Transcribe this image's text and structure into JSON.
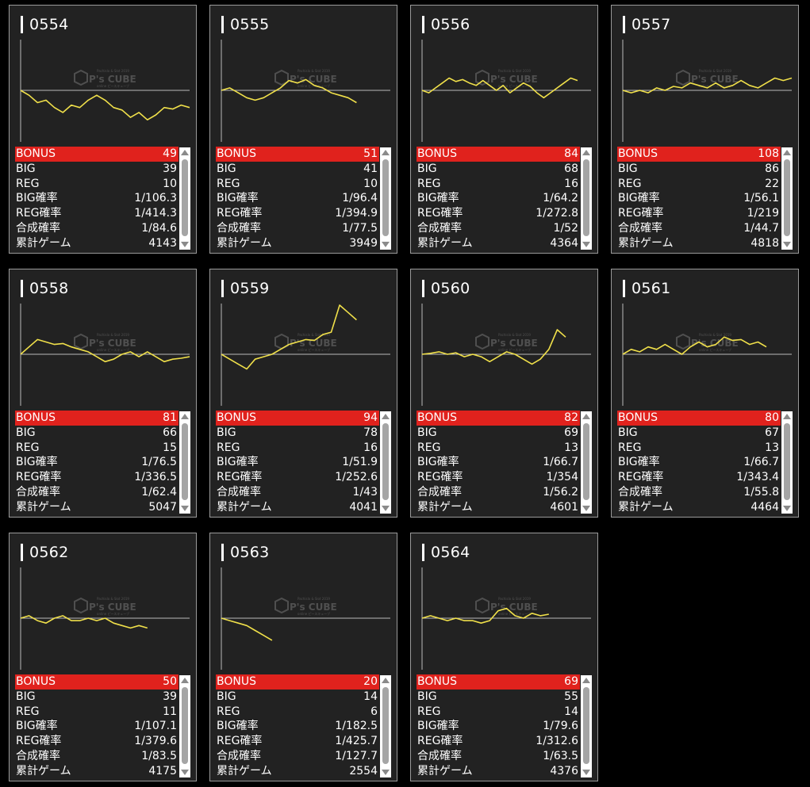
{
  "labels": {
    "bonus": "BONUS",
    "big": "BIG",
    "reg": "REG",
    "big_rate": "BIG確率",
    "reg_rate": "REG確率",
    "total_rate": "合成確率",
    "games": "累計ゲーム"
  },
  "watermark": {
    "brand": "P's CUBE",
    "small_top": "Pachislo & Slot 2019",
    "small_bottom": "online ピースキューブ"
  },
  "colors": {
    "bonus_bg": "#e0221d",
    "graph_line": "#f0e04a",
    "card_bg": "#222222"
  },
  "machines": [
    {
      "num": "0554",
      "bonus": "49",
      "big": "39",
      "reg": "10",
      "big_rate": "1/106.3",
      "reg_rate": "1/414.3",
      "total_rate": "1/84.6",
      "games": "4143",
      "graph": [
        [
          0,
          0
        ],
        [
          0.05,
          -0.1
        ],
        [
          0.1,
          -0.25
        ],
        [
          0.15,
          -0.2
        ],
        [
          0.2,
          -0.35
        ],
        [
          0.25,
          -0.45
        ],
        [
          0.3,
          -0.3
        ],
        [
          0.35,
          -0.35
        ],
        [
          0.4,
          -0.2
        ],
        [
          0.45,
          -0.1
        ],
        [
          0.5,
          -0.2
        ],
        [
          0.55,
          -0.35
        ],
        [
          0.6,
          -0.4
        ],
        [
          0.65,
          -0.55
        ],
        [
          0.7,
          -0.45
        ],
        [
          0.75,
          -0.6
        ],
        [
          0.8,
          -0.5
        ],
        [
          0.85,
          -0.35
        ],
        [
          0.9,
          -0.38
        ],
        [
          0.95,
          -0.3
        ],
        [
          1.0,
          -0.35
        ]
      ]
    },
    {
      "num": "0555",
      "bonus": "51",
      "big": "41",
      "reg": "10",
      "big_rate": "1/96.4",
      "reg_rate": "1/394.9",
      "total_rate": "1/77.5",
      "games": "3949",
      "graph": [
        [
          0,
          0
        ],
        [
          0.05,
          0.05
        ],
        [
          0.1,
          -0.05
        ],
        [
          0.15,
          -0.15
        ],
        [
          0.2,
          -0.2
        ],
        [
          0.25,
          -0.15
        ],
        [
          0.3,
          -0.05
        ],
        [
          0.35,
          0.05
        ],
        [
          0.4,
          0.2
        ],
        [
          0.45,
          0.15
        ],
        [
          0.5,
          0.22
        ],
        [
          0.55,
          0.1
        ],
        [
          0.6,
          0.05
        ],
        [
          0.65,
          -0.05
        ],
        [
          0.7,
          -0.1
        ],
        [
          0.75,
          -0.15
        ],
        [
          0.8,
          -0.25
        ]
      ]
    },
    {
      "num": "0556",
      "bonus": "84",
      "big": "68",
      "reg": "16",
      "big_rate": "1/64.2",
      "reg_rate": "1/272.8",
      "total_rate": "1/52",
      "games": "4364",
      "graph": [
        [
          0,
          0
        ],
        [
          0.04,
          -0.05
        ],
        [
          0.08,
          0.05
        ],
        [
          0.12,
          0.15
        ],
        [
          0.16,
          0.25
        ],
        [
          0.2,
          0.18
        ],
        [
          0.24,
          0.22
        ],
        [
          0.28,
          0.15
        ],
        [
          0.32,
          0.1
        ],
        [
          0.36,
          0.2
        ],
        [
          0.4,
          0.1
        ],
        [
          0.44,
          0.0
        ],
        [
          0.48,
          0.1
        ],
        [
          0.52,
          -0.05
        ],
        [
          0.56,
          0.05
        ],
        [
          0.6,
          0.15
        ],
        [
          0.64,
          0.08
        ],
        [
          0.68,
          -0.05
        ],
        [
          0.72,
          -0.15
        ],
        [
          0.76,
          -0.05
        ],
        [
          0.8,
          0.05
        ],
        [
          0.84,
          0.15
        ],
        [
          0.88,
          0.25
        ],
        [
          0.92,
          0.2
        ]
      ]
    },
    {
      "num": "0557",
      "bonus": "108",
      "big": "86",
      "reg": "22",
      "big_rate": "1/56.1",
      "reg_rate": "1/219",
      "total_rate": "1/44.7",
      "games": "4818",
      "graph": [
        [
          0,
          0
        ],
        [
          0.05,
          -0.05
        ],
        [
          0.1,
          0.0
        ],
        [
          0.15,
          -0.05
        ],
        [
          0.2,
          0.05
        ],
        [
          0.25,
          0.0
        ],
        [
          0.3,
          0.08
        ],
        [
          0.35,
          0.05
        ],
        [
          0.4,
          0.15
        ],
        [
          0.45,
          0.1
        ],
        [
          0.5,
          0.05
        ],
        [
          0.55,
          0.15
        ],
        [
          0.6,
          0.05
        ],
        [
          0.65,
          0.1
        ],
        [
          0.7,
          0.2
        ],
        [
          0.75,
          0.1
        ],
        [
          0.8,
          0.05
        ],
        [
          0.85,
          0.15
        ],
        [
          0.9,
          0.25
        ],
        [
          0.95,
          0.2
        ],
        [
          1.0,
          0.25
        ]
      ]
    },
    {
      "num": "0558",
      "bonus": "81",
      "big": "66",
      "reg": "15",
      "big_rate": "1/76.5",
      "reg_rate": "1/336.5",
      "total_rate": "1/62.4",
      "games": "5047",
      "graph": [
        [
          0,
          0
        ],
        [
          0.05,
          0.15
        ],
        [
          0.1,
          0.3
        ],
        [
          0.15,
          0.25
        ],
        [
          0.2,
          0.2
        ],
        [
          0.25,
          0.22
        ],
        [
          0.3,
          0.15
        ],
        [
          0.35,
          0.1
        ],
        [
          0.4,
          0.05
        ],
        [
          0.45,
          -0.05
        ],
        [
          0.5,
          -0.15
        ],
        [
          0.55,
          -0.1
        ],
        [
          0.6,
          0.0
        ],
        [
          0.65,
          0.05
        ],
        [
          0.7,
          -0.05
        ],
        [
          0.75,
          0.05
        ],
        [
          0.8,
          -0.05
        ],
        [
          0.85,
          -0.15
        ],
        [
          0.9,
          -0.1
        ],
        [
          0.95,
          -0.08
        ],
        [
          1.0,
          -0.05
        ]
      ]
    },
    {
      "num": "0559",
      "bonus": "94",
      "big": "78",
      "reg": "16",
      "big_rate": "1/51.9",
      "reg_rate": "1/252.6",
      "total_rate": "1/43",
      "games": "4041",
      "graph": [
        [
          0,
          0
        ],
        [
          0.05,
          -0.1
        ],
        [
          0.1,
          -0.2
        ],
        [
          0.15,
          -0.3
        ],
        [
          0.2,
          -0.1
        ],
        [
          0.25,
          -0.05
        ],
        [
          0.3,
          0.0
        ],
        [
          0.35,
          0.1
        ],
        [
          0.4,
          0.2
        ],
        [
          0.45,
          0.25
        ],
        [
          0.5,
          0.3
        ],
        [
          0.55,
          0.28
        ],
        [
          0.6,
          0.4
        ],
        [
          0.65,
          0.45
        ],
        [
          0.7,
          1.0
        ],
        [
          0.75,
          0.85
        ],
        [
          0.8,
          0.7
        ]
      ]
    },
    {
      "num": "0560",
      "bonus": "82",
      "big": "69",
      "reg": "13",
      "big_rate": "1/66.7",
      "reg_rate": "1/354",
      "total_rate": "1/56.2",
      "games": "4601",
      "graph": [
        [
          0,
          0
        ],
        [
          0.05,
          0.02
        ],
        [
          0.1,
          0.05
        ],
        [
          0.15,
          0.0
        ],
        [
          0.2,
          0.03
        ],
        [
          0.25,
          -0.05
        ],
        [
          0.3,
          0.0
        ],
        [
          0.35,
          -0.05
        ],
        [
          0.4,
          -0.15
        ],
        [
          0.45,
          -0.05
        ],
        [
          0.5,
          0.05
        ],
        [
          0.55,
          0.0
        ],
        [
          0.6,
          -0.1
        ],
        [
          0.65,
          -0.2
        ],
        [
          0.7,
          -0.1
        ],
        [
          0.75,
          0.1
        ],
        [
          0.8,
          0.5
        ],
        [
          0.85,
          0.35
        ]
      ]
    },
    {
      "num": "0561",
      "bonus": "80",
      "big": "67",
      "reg": "13",
      "big_rate": "1/66.7",
      "reg_rate": "1/343.4",
      "total_rate": "1/55.8",
      "games": "4464",
      "graph": [
        [
          0,
          0
        ],
        [
          0.05,
          0.1
        ],
        [
          0.1,
          0.05
        ],
        [
          0.15,
          0.15
        ],
        [
          0.2,
          0.1
        ],
        [
          0.25,
          0.2
        ],
        [
          0.3,
          0.1
        ],
        [
          0.35,
          0.0
        ],
        [
          0.4,
          0.15
        ],
        [
          0.45,
          0.25
        ],
        [
          0.5,
          0.15
        ],
        [
          0.55,
          0.2
        ],
        [
          0.6,
          0.35
        ],
        [
          0.65,
          0.28
        ],
        [
          0.7,
          0.3
        ],
        [
          0.75,
          0.2
        ],
        [
          0.8,
          0.25
        ],
        [
          0.85,
          0.15
        ]
      ]
    },
    {
      "num": "0562",
      "bonus": "50",
      "big": "39",
      "reg": "11",
      "big_rate": "1/107.1",
      "reg_rate": "1/379.6",
      "total_rate": "1/83.5",
      "games": "4175",
      "graph": [
        [
          0,
          0
        ],
        [
          0.05,
          0.05
        ],
        [
          0.1,
          -0.05
        ],
        [
          0.15,
          -0.1
        ],
        [
          0.2,
          0.0
        ],
        [
          0.25,
          0.05
        ],
        [
          0.3,
          -0.05
        ],
        [
          0.35,
          -0.05
        ],
        [
          0.4,
          0.0
        ],
        [
          0.45,
          -0.05
        ],
        [
          0.5,
          0.0
        ],
        [
          0.55,
          -0.1
        ],
        [
          0.6,
          -0.15
        ],
        [
          0.65,
          -0.2
        ],
        [
          0.7,
          -0.15
        ],
        [
          0.75,
          -0.2
        ]
      ]
    },
    {
      "num": "0563",
      "bonus": "20",
      "big": "14",
      "reg": "6",
      "big_rate": "1/182.5",
      "reg_rate": "1/425.7",
      "total_rate": "1/127.7",
      "games": "2554",
      "graph": [
        [
          0,
          0
        ],
        [
          0.05,
          -0.05
        ],
        [
          0.1,
          -0.1
        ],
        [
          0.15,
          -0.15
        ],
        [
          0.2,
          -0.25
        ],
        [
          0.25,
          -0.35
        ],
        [
          0.3,
          -0.45
        ]
      ]
    },
    {
      "num": "0564",
      "bonus": "69",
      "big": "55",
      "reg": "14",
      "big_rate": "1/79.6",
      "reg_rate": "1/312.6",
      "total_rate": "1/63.5",
      "games": "4376",
      "graph": [
        [
          0,
          0
        ],
        [
          0.05,
          0.05
        ],
        [
          0.1,
          0.0
        ],
        [
          0.15,
          -0.05
        ],
        [
          0.2,
          0.0
        ],
        [
          0.25,
          -0.05
        ],
        [
          0.3,
          -0.05
        ],
        [
          0.35,
          -0.1
        ],
        [
          0.4,
          -0.05
        ],
        [
          0.45,
          0.15
        ],
        [
          0.5,
          0.2
        ],
        [
          0.55,
          0.05
        ],
        [
          0.6,
          0.0
        ],
        [
          0.65,
          0.1
        ],
        [
          0.7,
          0.05
        ],
        [
          0.75,
          0.08
        ]
      ]
    }
  ]
}
